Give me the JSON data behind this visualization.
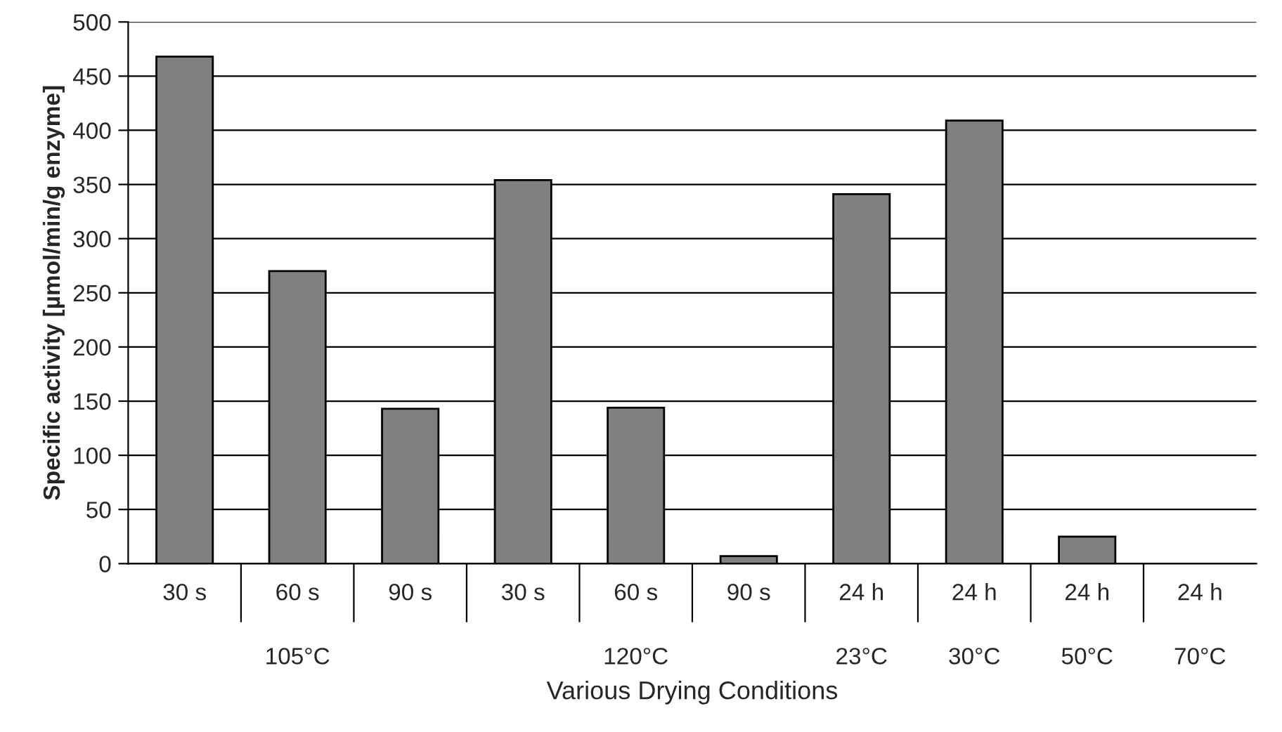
{
  "chart_data": {
    "type": "bar",
    "xlabel": "Various Drying Conditions",
    "ylabel": "Specific activity [µmol/min/g enzyme]",
    "categories": [
      "30 s",
      "60 s\n\n105°C",
      "90 s",
      "30 s",
      "60 s\n\n120°C",
      "90 s",
      "24 h\n\n23°C",
      "24 h\n\n30°C",
      "24 h\n\n50°C",
      "24 h\n\n70°C"
    ],
    "values": [
      468,
      270,
      143,
      354,
      144,
      7,
      341,
      409,
      25,
      null
    ],
    "color": "#808080",
    "ylim": [
      0,
      500
    ],
    "yticks": [
      0,
      50,
      100,
      150,
      200,
      250,
      300,
      350,
      400,
      450,
      500
    ],
    "grid": "y"
  }
}
